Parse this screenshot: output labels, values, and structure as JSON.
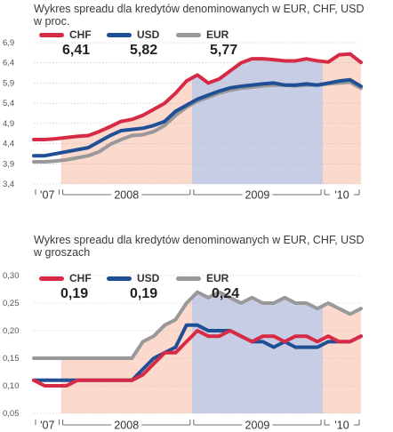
{
  "chart_data": [
    {
      "type": "line",
      "title": [
        "Wykres spreadu dla kredytów denominowanych w EUR, CHF, USD",
        "w proc."
      ],
      "ylim": [
        3.4,
        6.9
      ],
      "yticks": [
        "6,9",
        "6,4",
        "5,9",
        "5,4",
        "4,9",
        "4,4",
        "3,9",
        "3,4"
      ],
      "ytick_values": [
        6.9,
        6.4,
        5.9,
        5.4,
        4.9,
        4.4,
        3.9,
        3.4
      ],
      "x": [
        "2007-10",
        "2007-11",
        "2007-12",
        "2008-01",
        "2008-02",
        "2008-03",
        "2008-04",
        "2008-05",
        "2008-06",
        "2008-07",
        "2008-08",
        "2008-09",
        "2008-10",
        "2008-11",
        "2008-12",
        "2009-01",
        "2009-02",
        "2009-03",
        "2009-04",
        "2009-05",
        "2009-06",
        "2009-07",
        "2009-08",
        "2009-09",
        "2009-10",
        "2009-11",
        "2009-12",
        "2010-01",
        "2010-02",
        "2010-03",
        "2010-04"
      ],
      "periods": [
        {
          "label": "'07",
          "from": 0,
          "to": 2
        },
        {
          "label": "2008",
          "from": 3,
          "to": 14
        },
        {
          "label": "2009",
          "from": 15,
          "to": 26
        },
        {
          "label": "'10",
          "from": 27,
          "to": 30
        }
      ],
      "series": [
        {
          "name": "CHF",
          "color": "#d72b45",
          "last": "6,41",
          "values": [
            4.5,
            4.5,
            4.52,
            4.55,
            4.58,
            4.6,
            4.7,
            4.82,
            4.95,
            5.0,
            5.1,
            5.25,
            5.4,
            5.65,
            5.95,
            6.1,
            5.9,
            6.0,
            6.2,
            6.4,
            6.5,
            6.5,
            6.48,
            6.45,
            6.45,
            6.5,
            6.45,
            6.42,
            6.6,
            6.62,
            6.41
          ]
        },
        {
          "name": "USD",
          "color": "#1f4f95",
          "last": "5,82",
          "values": [
            4.1,
            4.1,
            4.15,
            4.2,
            4.25,
            4.3,
            4.45,
            4.6,
            4.72,
            4.75,
            4.78,
            4.85,
            4.95,
            5.2,
            5.35,
            5.5,
            5.6,
            5.7,
            5.78,
            5.82,
            5.85,
            5.88,
            5.9,
            5.85,
            5.85,
            5.88,
            5.85,
            5.9,
            5.95,
            5.98,
            5.82
          ]
        },
        {
          "name": "EUR",
          "color": "#999999",
          "last": "5,77",
          "values": [
            3.95,
            3.95,
            3.97,
            4.0,
            4.05,
            4.1,
            4.2,
            4.38,
            4.5,
            4.6,
            4.62,
            4.7,
            4.85,
            5.1,
            5.3,
            5.45,
            5.55,
            5.65,
            5.72,
            5.77,
            5.8,
            5.83,
            5.85,
            5.85,
            5.83,
            5.85,
            5.85,
            5.88,
            5.9,
            5.92,
            5.77
          ]
        }
      ]
    },
    {
      "type": "line",
      "title": [
        "Wykres spreadu dla kredytów denominowanych w EUR, CHF, USD",
        "w groszach"
      ],
      "ylim": [
        0.05,
        0.3
      ],
      "yticks": [
        "0,30",
        "0,25",
        "0,20",
        "0,15",
        "0,10",
        "0,05"
      ],
      "ytick_values": [
        0.3,
        0.25,
        0.2,
        0.15,
        0.1,
        0.05
      ],
      "x": [
        "2007-10",
        "2007-11",
        "2007-12",
        "2008-01",
        "2008-02",
        "2008-03",
        "2008-04",
        "2008-05",
        "2008-06",
        "2008-07",
        "2008-08",
        "2008-09",
        "2008-10",
        "2008-11",
        "2008-12",
        "2009-01",
        "2009-02",
        "2009-03",
        "2009-04",
        "2009-05",
        "2009-06",
        "2009-07",
        "2009-08",
        "2009-09",
        "2009-10",
        "2009-11",
        "2009-12",
        "2010-01",
        "2010-02",
        "2010-03",
        "2010-04"
      ],
      "periods": [
        {
          "label": "'07",
          "from": 0,
          "to": 2
        },
        {
          "label": "2008",
          "from": 3,
          "to": 14
        },
        {
          "label": "2009",
          "from": 15,
          "to": 26
        },
        {
          "label": "'10",
          "from": 27,
          "to": 30
        }
      ],
      "series": [
        {
          "name": "CHF",
          "color": "#d72b45",
          "last": "0,19",
          "values": [
            0.11,
            0.1,
            0.1,
            0.1,
            0.11,
            0.11,
            0.11,
            0.11,
            0.11,
            0.11,
            0.12,
            0.14,
            0.16,
            0.16,
            0.18,
            0.2,
            0.19,
            0.19,
            0.2,
            0.19,
            0.18,
            0.19,
            0.19,
            0.18,
            0.19,
            0.19,
            0.18,
            0.19,
            0.18,
            0.18,
            0.19
          ]
        },
        {
          "name": "USD",
          "color": "#1f4f95",
          "last": "0,19",
          "values": [
            0.11,
            0.11,
            0.11,
            0.11,
            0.11,
            0.11,
            0.11,
            0.11,
            0.11,
            0.11,
            0.13,
            0.15,
            0.16,
            0.17,
            0.21,
            0.21,
            0.2,
            0.2,
            0.2,
            0.19,
            0.18,
            0.18,
            0.17,
            0.18,
            0.17,
            0.17,
            0.17,
            0.18,
            0.18,
            0.18,
            0.19
          ]
        },
        {
          "name": "EUR",
          "color": "#999999",
          "last": "0,24",
          "values": [
            0.15,
            0.15,
            0.15,
            0.15,
            0.15,
            0.15,
            0.15,
            0.15,
            0.15,
            0.15,
            0.18,
            0.19,
            0.21,
            0.22,
            0.25,
            0.27,
            0.26,
            0.27,
            0.26,
            0.25,
            0.26,
            0.25,
            0.25,
            0.26,
            0.25,
            0.25,
            0.24,
            0.25,
            0.24,
            0.23,
            0.24
          ]
        }
      ]
    }
  ]
}
